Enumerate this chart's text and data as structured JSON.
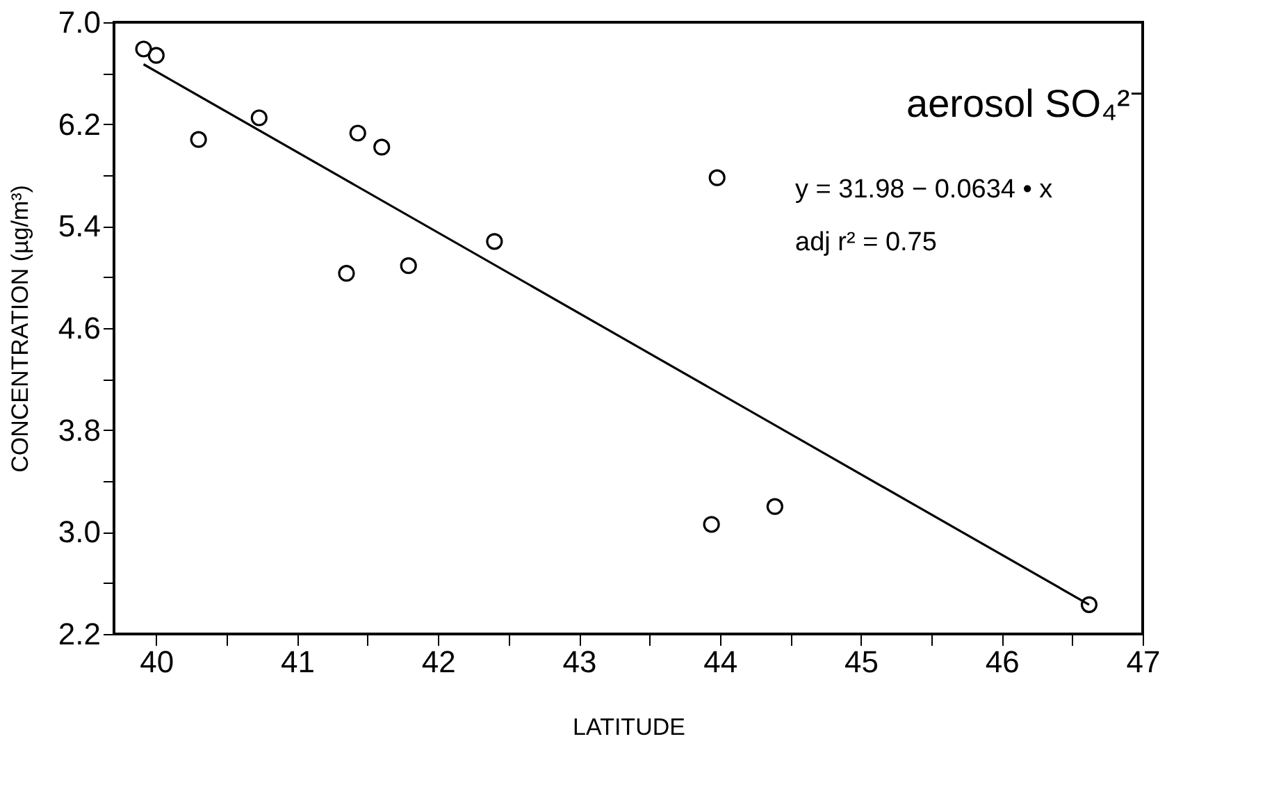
{
  "chart_data": {
    "type": "scatter",
    "xlabel": "LATITUDE",
    "ylabel": "CONCENTRATION (µg/m³)",
    "series": [
      {
        "color": "#000000",
        "marker": "circle",
        "x": [
          39.91,
          40.0,
          40.3,
          40.73,
          41.35,
          41.43,
          41.6,
          41.79,
          42.4,
          43.98,
          43.94,
          44.39,
          46.62
        ],
        "values": [
          6.79,
          6.74,
          6.08,
          6.25,
          5.03,
          6.13,
          6.02,
          5.09,
          5.28,
          5.78,
          3.06,
          3.2,
          2.43
        ]
      },
      {
        "type": "line",
        "color": "#000000",
        "line_style": "solid",
        "x": [
          39.91,
          46.62
        ],
        "values": [
          6.67,
          2.43
        ]
      }
    ],
    "annotations": [
      "aerosol SO₄²⁻",
      "y = 31.98 − 0.0634 • x",
      "adj r² = 0.75"
    ],
    "xlim": [
      39.7,
      47.0
    ],
    "xticks": [
      40,
      {
        "value": 40.5,
        "label": null
      },
      41,
      {
        "value": 41.5,
        "label": null
      },
      42,
      {
        "value": 42.5,
        "label": null
      },
      43,
      {
        "value": 43.5,
        "label": null
      },
      44,
      {
        "value": 44.5,
        "label": null
      },
      45,
      {
        "value": 45.5,
        "label": null
      },
      46,
      {
        "value": 46.5,
        "label": null
      },
      47
    ],
    "ylim": [
      2.2,
      7.0
    ],
    "yticks": [
      {
        "value": 2.2,
        "label": "2.2"
      },
      {
        "value": 2.6,
        "label": null
      },
      {
        "value": 3.0,
        "label": "3.0"
      },
      {
        "value": 3.4,
        "label": null
      },
      {
        "value": 3.8,
        "label": "3.8"
      },
      {
        "value": 4.2,
        "label": null
      },
      {
        "value": 4.6,
        "label": "4.6"
      },
      {
        "value": 5.0,
        "label": null
      },
      {
        "value": 5.4,
        "label": "5.4"
      },
      {
        "value": 5.8,
        "label": null
      },
      {
        "value": 6.2,
        "label": "6.2"
      },
      {
        "value": 6.6,
        "label": null
      },
      {
        "value": 7.0,
        "label": "7.0"
      }
    ],
    "grid": false
  }
}
